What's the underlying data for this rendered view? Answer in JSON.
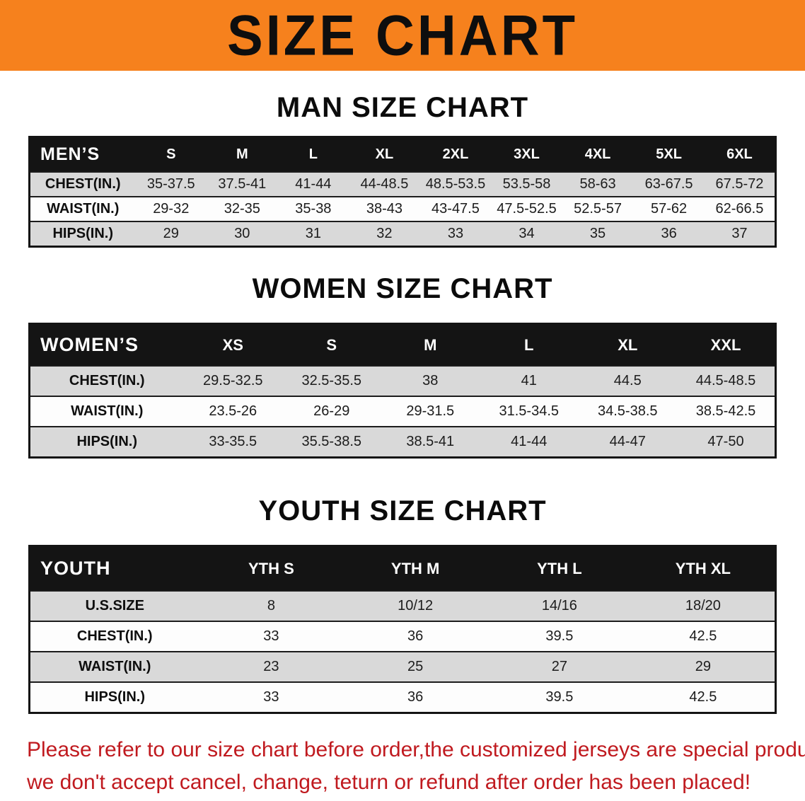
{
  "banner": {
    "title": "SIZE CHART",
    "bg_color": "#f6811d",
    "text_color": "#0e0e0e"
  },
  "sections": [
    {
      "id": "men",
      "heading": "MAN SIZE CHART",
      "table": {
        "corner": "MEN’S",
        "columns": [
          "S",
          "M",
          "L",
          "XL",
          "2XL",
          "3XL",
          "4XL",
          "5XL",
          "6XL"
        ],
        "rows": [
          {
            "label": "CHEST(IN.)",
            "values": [
              "35-37.5",
              "37.5-41",
              "41-44",
              "44-48.5",
              "48.5-53.5",
              "53.5-58",
              "58-63",
              "63-67.5",
              "67.5-72"
            ]
          },
          {
            "label": "WAIST(IN.)",
            "values": [
              "29-32",
              "32-35",
              "35-38",
              "38-43",
              "43-47.5",
              "47.5-52.5",
              "52.5-57",
              "57-62",
              "62-66.5"
            ]
          },
          {
            "label": "HIPS(IN.)",
            "values": [
              "29",
              "30",
              "31",
              "32",
              "33",
              "34",
              "35",
              "36",
              "37"
            ]
          }
        ]
      }
    },
    {
      "id": "women",
      "heading": "WOMEN SIZE CHART",
      "table": {
        "corner": "WOMEN’S",
        "columns": [
          "XS",
          "S",
          "M",
          "L",
          "XL",
          "XXL"
        ],
        "rows": [
          {
            "label": "CHEST(IN.)",
            "values": [
              "29.5-32.5",
              "32.5-35.5",
              "38",
              "41",
              "44.5",
              "44.5-48.5"
            ]
          },
          {
            "label": "WAIST(IN.)",
            "values": [
              "23.5-26",
              "26-29",
              "29-31.5",
              "31.5-34.5",
              "34.5-38.5",
              "38.5-42.5"
            ]
          },
          {
            "label": "HIPS(IN.)",
            "values": [
              "33-35.5",
              "35.5-38.5",
              "38.5-41",
              "41-44",
              "44-47",
              "47-50"
            ]
          }
        ]
      }
    },
    {
      "id": "youth",
      "heading": "YOUTH SIZE CHART",
      "table": {
        "corner": "YOUTH",
        "columns": [
          "YTH S",
          "YTH M",
          "YTH L",
          "YTH XL"
        ],
        "rows": [
          {
            "label": "U.S.SIZE",
            "values": [
              "8",
              "10/12",
              "14/16",
              "18/20"
            ]
          },
          {
            "label": "CHEST(IN.)",
            "values": [
              "33",
              "36",
              "39.5",
              "42.5"
            ]
          },
          {
            "label": "WAIST(IN.)",
            "values": [
              "23",
              "25",
              "27",
              "29"
            ]
          },
          {
            "label": "HIPS(IN.)",
            "values": [
              "33",
              "36",
              "39.5",
              "42.5"
            ]
          }
        ]
      }
    }
  ],
  "footer": {
    "line1": "Please refer to our size chart before order,the customized jerseys are special products,",
    "line2": "we don't accept cancel, change, teturn or refund after order has been placed!",
    "text_color": "#c01a1f"
  }
}
